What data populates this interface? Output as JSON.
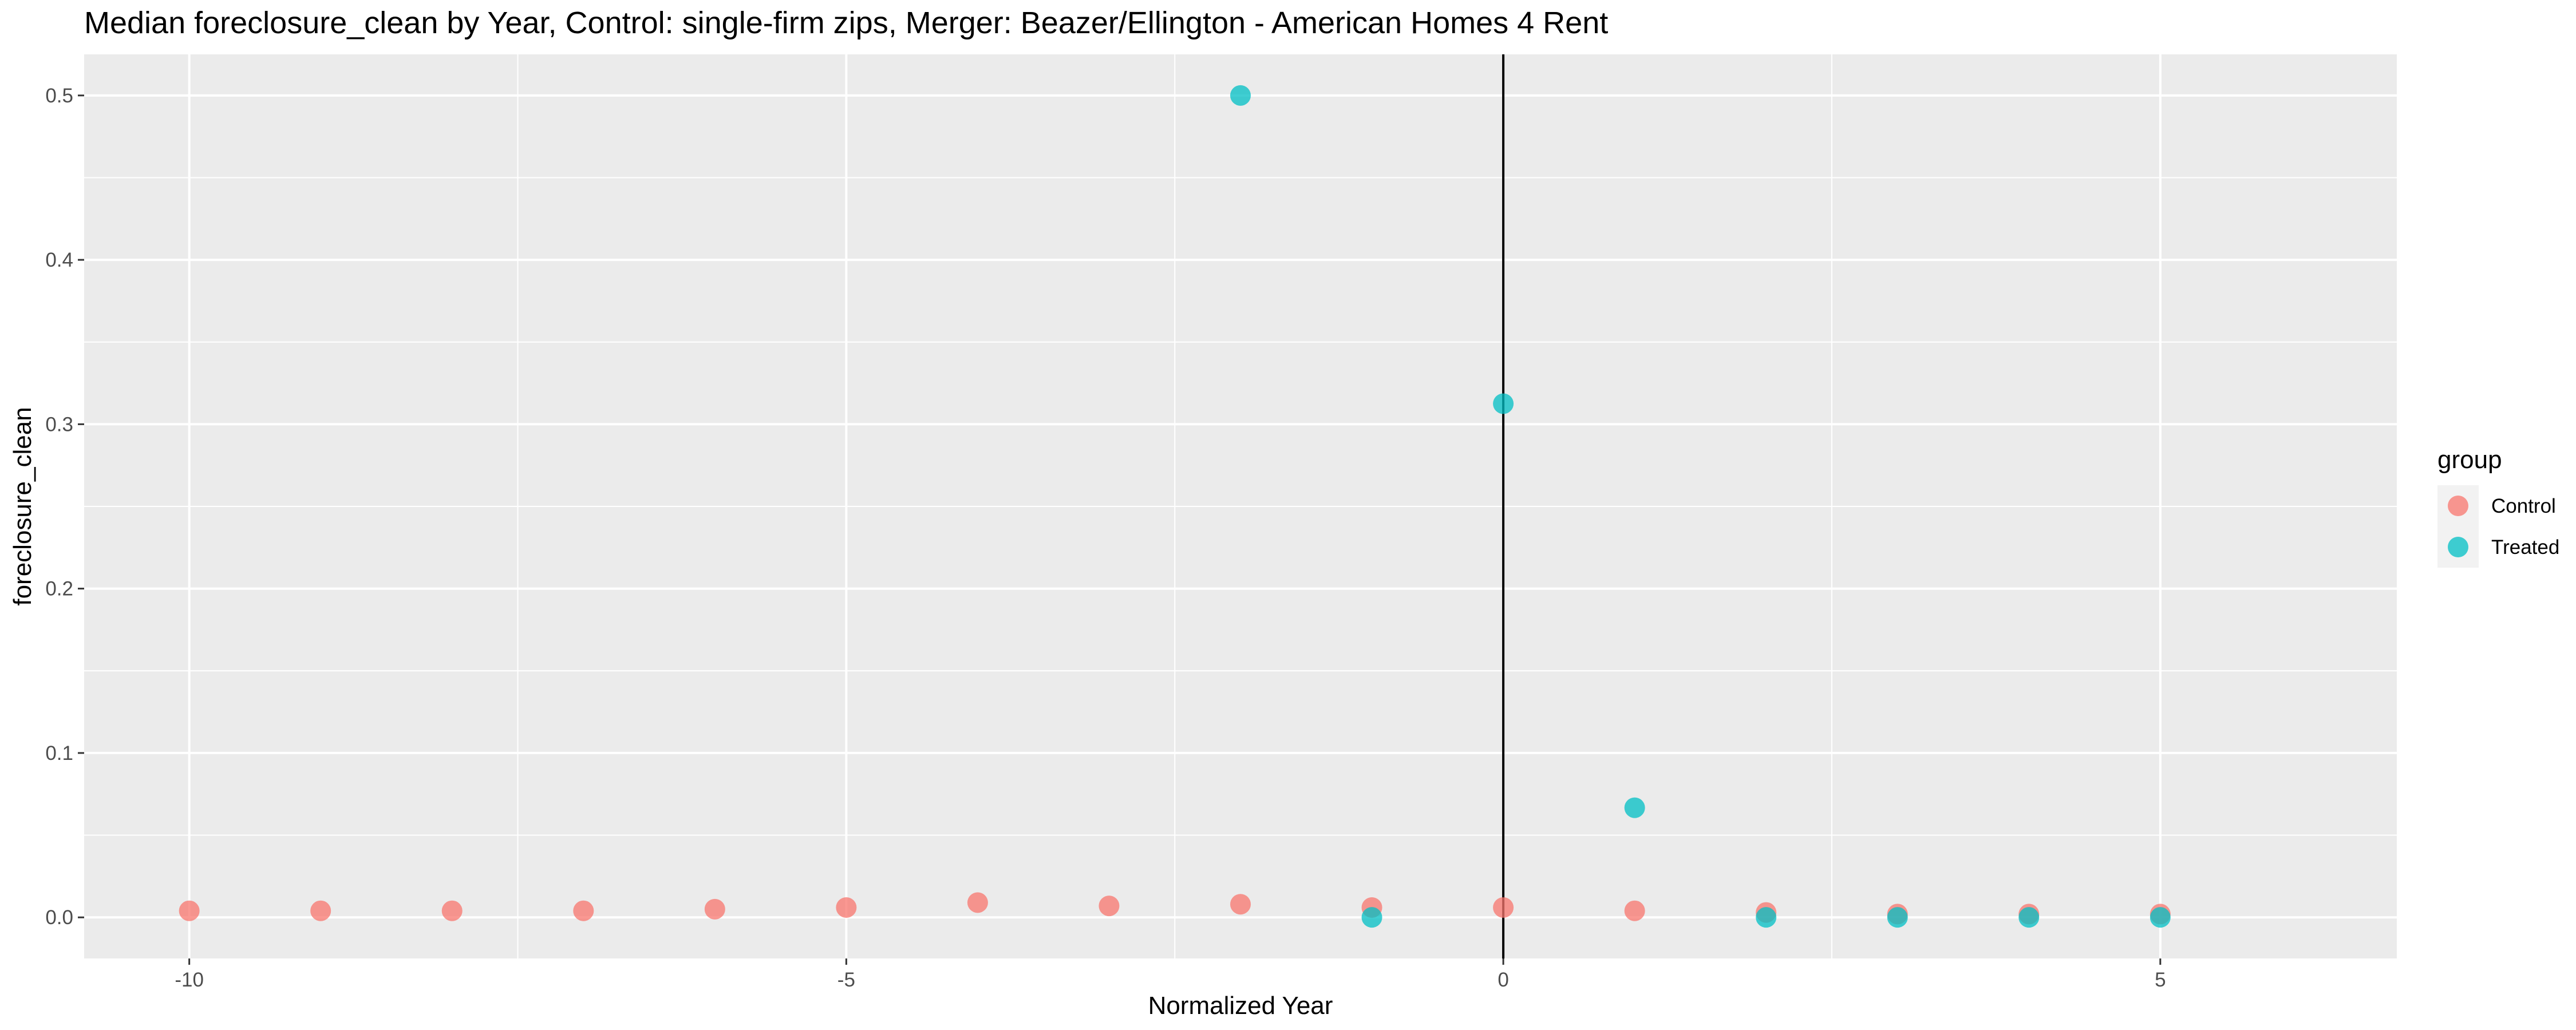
{
  "chart_data": {
    "type": "scatter",
    "title": "Median foreclosure_clean by Year, Control: single-firm zips, Merger: Beazer/Ellington - American Homes 4 Rent",
    "xlabel": "Normalized Year",
    "ylabel": "foreclosure_clean",
    "xlim": [
      -10.8,
      6.8
    ],
    "ylim": [
      -0.025,
      0.525
    ],
    "x_ticks": [
      -10,
      -5,
      0,
      5
    ],
    "x_tick_labels": [
      "-10",
      "-5",
      "0",
      "5"
    ],
    "y_ticks": [
      0.0,
      0.1,
      0.2,
      0.3,
      0.4,
      0.5
    ],
    "y_tick_labels": [
      "0.0",
      "0.1",
      "0.2",
      "0.3",
      "0.4",
      "0.5"
    ],
    "grid": true,
    "vline_x": 0,
    "legend": {
      "title": "group",
      "placement": "right"
    },
    "series": [
      {
        "name": "Control",
        "color": "#F8766D",
        "x": [
          -10,
          -9,
          -8,
          -7,
          -6,
          -5,
          -4,
          -3,
          -2,
          -1,
          0,
          1,
          2,
          3,
          4,
          5
        ],
        "y": [
          0.004,
          0.004,
          0.004,
          0.004,
          0.005,
          0.006,
          0.009,
          0.007,
          0.008,
          0.006,
          0.006,
          0.004,
          0.003,
          0.002,
          0.002,
          0.002
        ]
      },
      {
        "name": "Treated",
        "color": "#00BFC4",
        "x": [
          -2,
          -1,
          0,
          1,
          2,
          3,
          4,
          5
        ],
        "y": [
          0.5,
          0.0,
          0.3125,
          0.0667,
          0.0,
          0.0,
          0.0,
          0.0
        ]
      }
    ]
  }
}
